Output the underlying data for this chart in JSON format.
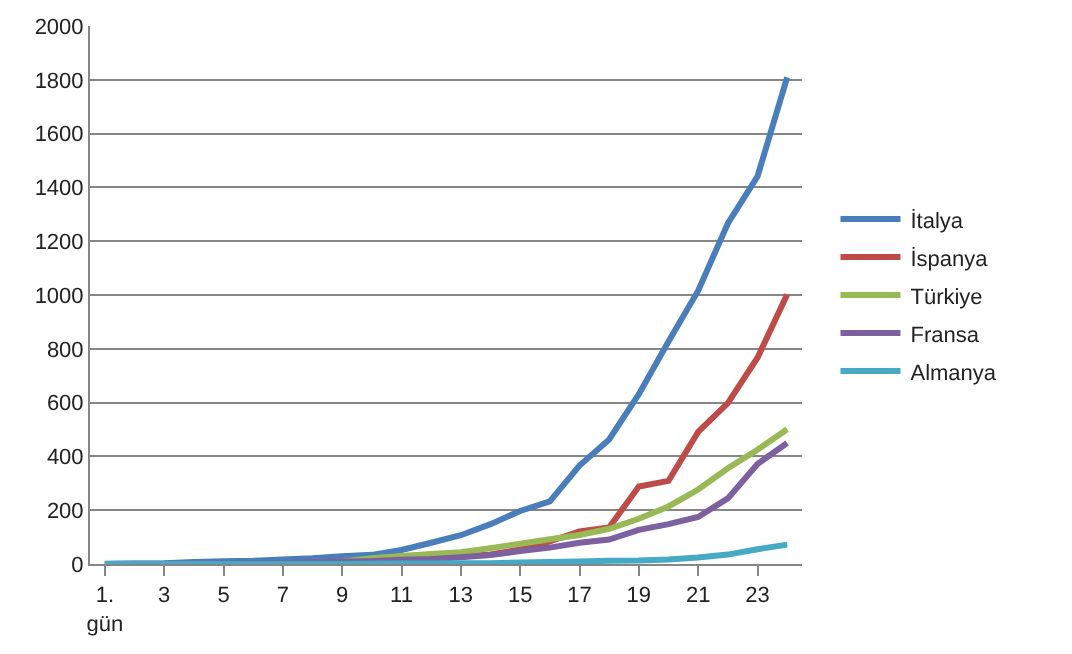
{
  "chart_data": {
    "type": "line",
    "categories": [
      "1. gün",
      null,
      "3",
      null,
      "5",
      null,
      "7",
      null,
      "9",
      null,
      "11",
      null,
      "13",
      null,
      "15",
      null,
      "17",
      null,
      "19",
      null,
      "21",
      null,
      "23",
      null
    ],
    "series": [
      {
        "name": "İtalya",
        "color": "#4a7ebb",
        "values": [
          1,
          2,
          3,
          7,
          10,
          12,
          17,
          21,
          29,
          34,
          52,
          79,
          107,
          148,
          197,
          233,
          366,
          463,
          631,
          827,
          1016,
          1266,
          1441,
          1809
        ]
      },
      {
        "name": "İspanya",
        "color": "#be4b48",
        "values": [
          null,
          null,
          null,
          null,
          null,
          null,
          null,
          null,
          null,
          null,
          null,
          17,
          28,
          35,
          54,
          84,
          121,
          136,
          288,
          309,
          491,
          598,
          767,
          1002
        ]
      },
      {
        "name": "Türkiye",
        "color": "#98b954",
        "values": [
          null,
          null,
          null,
          null,
          null,
          null,
          null,
          4,
          9,
          21,
          30,
          37,
          44,
          59,
          75,
          92,
          108,
          131,
          168,
          214,
          277,
          356,
          425,
          501
        ]
      },
      {
        "name": "Fransa",
        "color": "#7d60a0",
        "values": [
          0,
          1,
          1,
          2,
          2,
          3,
          4,
          7,
          9,
          11,
          16,
          19,
          25,
          33,
          48,
          61,
          79,
          91,
          127,
          148,
          175,
          244,
          372,
          450
        ]
      },
      {
        "name": "Almanya",
        "color": "#46aac5",
        "values": [
          0,
          0,
          0,
          0,
          0,
          0,
          0,
          0,
          0,
          1,
          2,
          2,
          3,
          3,
          6,
          7,
          9,
          12,
          13,
          17,
          24,
          35,
          55,
          72
        ]
      }
    ],
    "ylim": [
      0,
      2000
    ],
    "yticks": [
      0,
      200,
      400,
      600,
      800,
      1000,
      1200,
      1400,
      1600,
      1800,
      2000
    ],
    "grid": "y",
    "legend": "right",
    "marker": "none",
    "line_style": "solid"
  }
}
